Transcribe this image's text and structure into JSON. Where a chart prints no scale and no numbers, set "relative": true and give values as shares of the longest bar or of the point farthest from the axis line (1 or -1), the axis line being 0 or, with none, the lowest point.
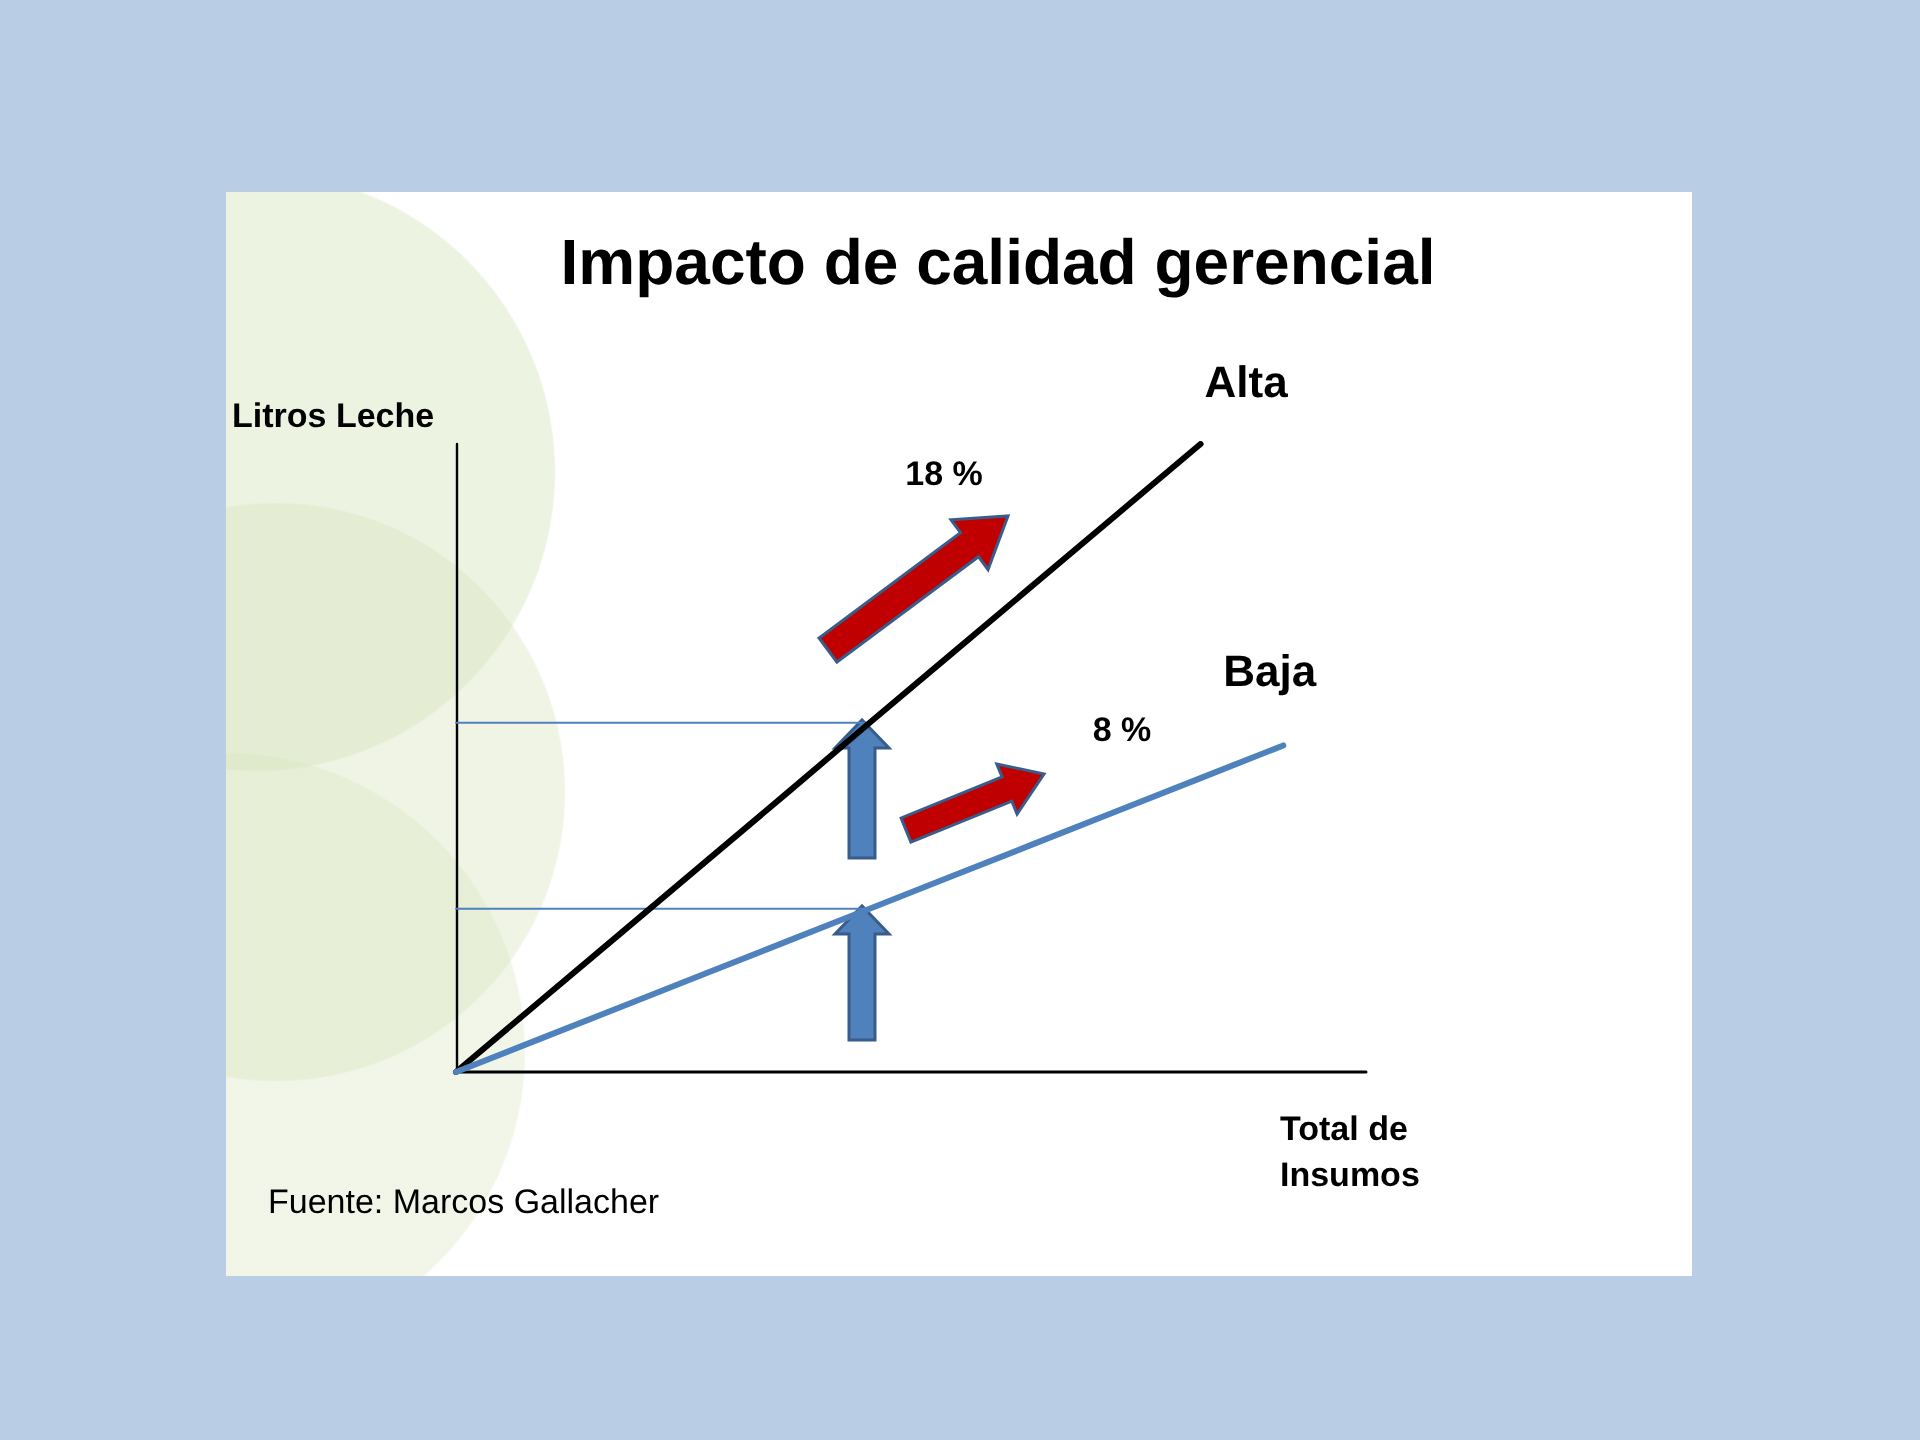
{
  "chart_data": {
    "type": "line",
    "title": "Impacto de calidad gerencial",
    "xlabel": "Total de Insumos",
    "ylabel": "Litros Leche",
    "annotations": [
      "18 %",
      "8 %",
      "Fuente: Marcos Gallacher"
    ],
    "relative": true,
    "categories": [
      null,
      null,
      null,
      null,
      null,
      null,
      null,
      null,
      null,
      null,
      null,
      null
    ],
    "series": [
      {
        "name": "Alta",
        "color": "#000000",
        "values": [
          0,
          0.111,
          0.222,
          0.333,
          0.444,
          0.556,
          0.667,
          0.778,
          0.889,
          1,
          null,
          null
        ]
      },
      {
        "name": "Baja",
        "color": "#4f81bd",
        "values": [
          0,
          0.052,
          0.104,
          0.156,
          0.208,
          0.26,
          0.312,
          0.364,
          0.416,
          0.468,
          0.52,
          null
        ]
      },
      {
        "color": "#4f81bd",
        "values": [
          0.556,
          0.556,
          0.556,
          0.556,
          0.556,
          0.556,
          null,
          null,
          null,
          null,
          null,
          null
        ]
      },
      {
        "color": "#4f81bd",
        "values": [
          0.26,
          0.26,
          0.26,
          0.26,
          0.26,
          0.26,
          null,
          null,
          null,
          null,
          null,
          null
        ]
      }
    ]
  }
}
